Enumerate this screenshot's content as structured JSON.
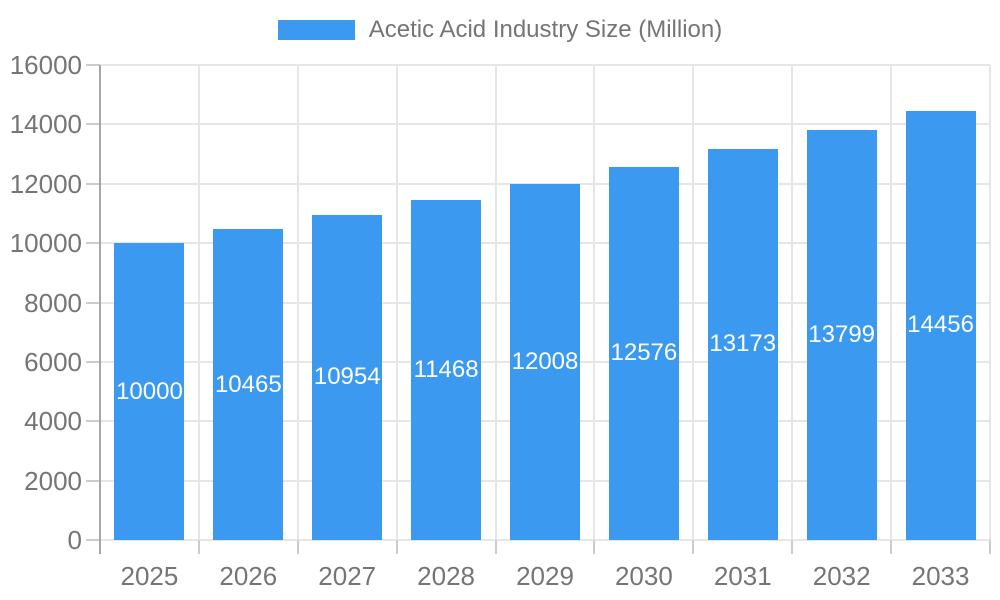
{
  "legend": {
    "label": "Acetic Acid Industry Size (Million)"
  },
  "chart_data": {
    "type": "bar",
    "title": "Acetic Acid Industry Size (Million)",
    "categories": [
      "2025",
      "2026",
      "2027",
      "2028",
      "2029",
      "2030",
      "2031",
      "2032",
      "2033"
    ],
    "series": [
      {
        "name": "Acetic Acid Industry Size (Million)",
        "values": [
          10000,
          10465,
          10954,
          11468,
          12008,
          12576,
          13173,
          13799,
          14456
        ]
      }
    ],
    "value_labels_visible": true,
    "xlabel": "",
    "ylabel": "",
    "ylim": [
      0,
      16000
    ],
    "yticks": [
      0,
      2000,
      4000,
      6000,
      8000,
      10000,
      12000,
      14000,
      16000
    ],
    "grid": true,
    "legend_position": "top"
  },
  "colors": {
    "bar": "#3B99F0",
    "grid": "#e6e6e6",
    "tick": "#cccccc",
    "axis": "#a6a6a6",
    "text": "#757575",
    "value_label": "#ffffff",
    "background": "#ffffff"
  }
}
